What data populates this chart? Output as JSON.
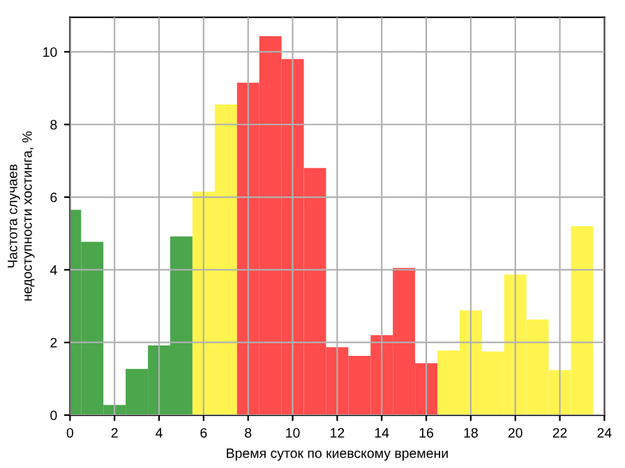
{
  "chart_data": {
    "type": "histogram",
    "xlabel": "Время суток по киевскому времени",
    "ylabel": "Частота случаев\nнедоступности хостинга, %",
    "bins": [
      -0.5,
      0.5,
      1.5,
      2.5,
      3.5,
      4.5,
      5.5,
      6.5,
      7.5,
      8.5,
      9.5,
      10.5,
      11.5,
      12.5,
      13.5,
      14.5,
      15.5,
      16.5,
      17.5,
      18.5,
      19.5,
      20.5,
      21.5,
      22.5,
      23.5
    ],
    "values": [
      5.65,
      4.77,
      0.28,
      1.27,
      1.92,
      4.92,
      6.15,
      8.55,
      9.15,
      10.43,
      9.8,
      6.8,
      1.87,
      1.63,
      2.2,
      4.05,
      1.43,
      1.78,
      2.88,
      1.75,
      3.87,
      2.63,
      1.24,
      5.2
    ],
    "colors": [
      "#4ca64c",
      "#4ca64c",
      "#4ca64c",
      "#4ca64c",
      "#4ca64c",
      "#4ca64c",
      "#fff44f",
      "#fff44f",
      "#ff4c4c",
      "#ff4c4c",
      "#ff4c4c",
      "#ff4c4c",
      "#ff4c4c",
      "#ff4c4c",
      "#ff4c4c",
      "#ff4c4c",
      "#ff4c4c",
      "#fff44f",
      "#fff44f",
      "#fff44f",
      "#fff44f",
      "#fff44f",
      "#fff44f",
      "#fff44f"
    ],
    "xlim": [
      0,
      24
    ],
    "xticks": [
      0,
      2,
      4,
      6,
      8,
      10,
      12,
      14,
      16,
      18,
      20,
      22,
      24
    ],
    "ylim": [
      0,
      10.95
    ],
    "yticks": [
      0,
      2,
      4,
      6,
      8,
      10
    ],
    "grid": true
  }
}
